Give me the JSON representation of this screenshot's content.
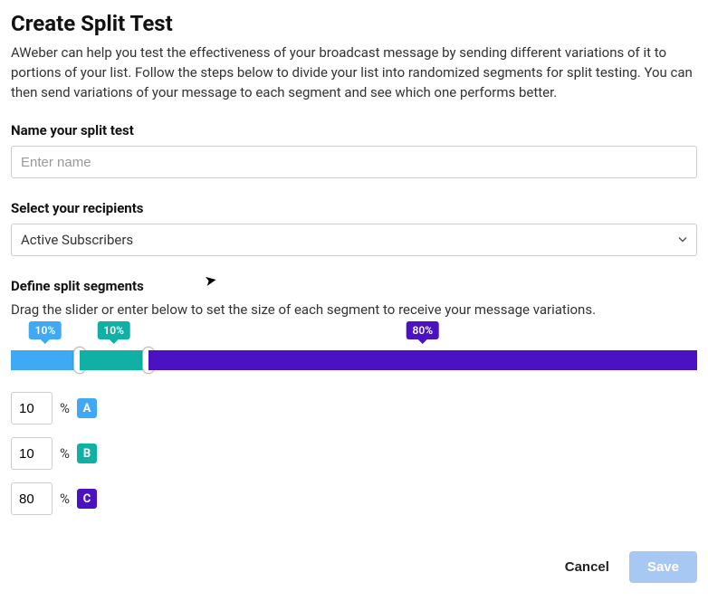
{
  "title": "Create Split Test",
  "description": "AWeber can help you test the effectiveness of your broadcast message by sending different variations of it to portions of your list. Follow the steps below to divide your list into randomized segments for split testing. You can then send variations of your message to each segment and see which one performs better.",
  "name_field": {
    "label": "Name your split test",
    "placeholder": "Enter name",
    "value": ""
  },
  "recipients_field": {
    "label": "Select your recipients",
    "selected": "Active Subscribers"
  },
  "segments_section": {
    "label": "Define split segments",
    "help": "Drag the slider or enter below to set the size of each segment to receive your message variations."
  },
  "segments": [
    {
      "key": "A",
      "percent": 10,
      "color": "#3fa9f5"
    },
    {
      "key": "B",
      "percent": 10,
      "color": "#11b0a5"
    },
    {
      "key": "C",
      "percent": 80,
      "color": "#4b12c4"
    }
  ],
  "footer": {
    "cancel": "Cancel",
    "save": "Save",
    "save_bg": "#a7c8f2",
    "save_disabled": true
  }
}
